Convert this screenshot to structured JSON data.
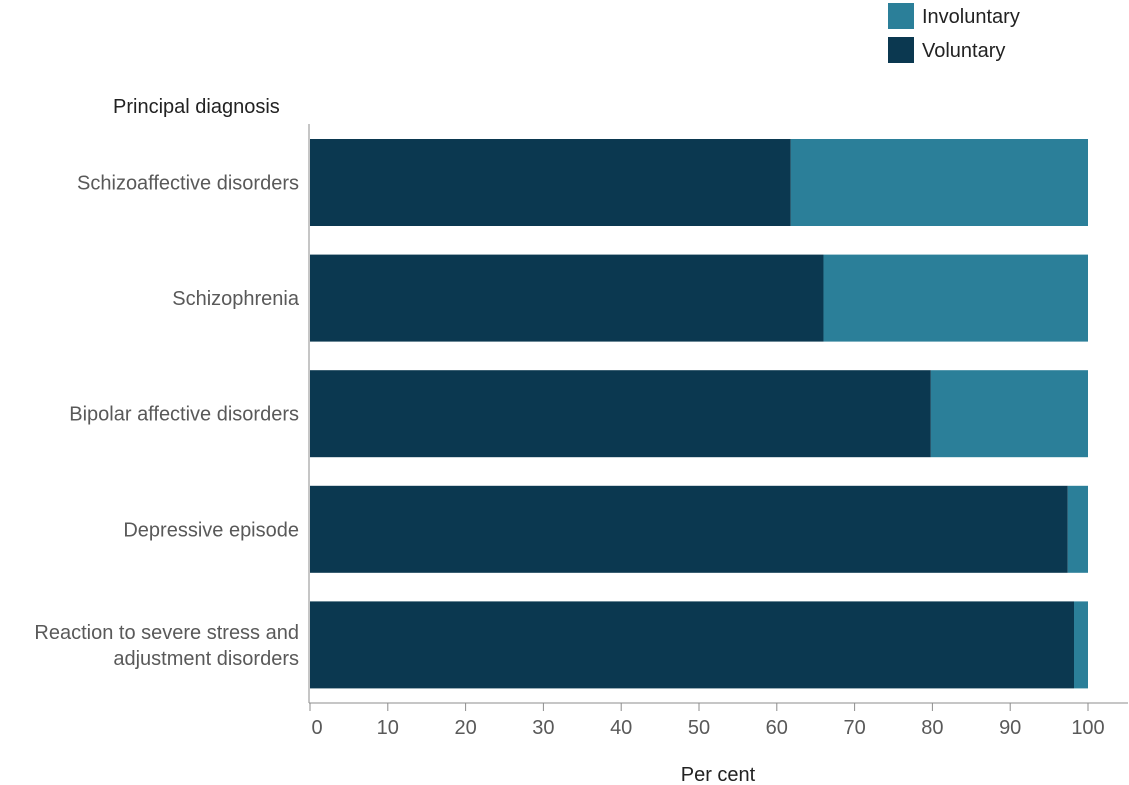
{
  "chart_data": {
    "type": "bar",
    "orientation": "horizontal",
    "stacked": true,
    "title": "",
    "xlabel": "Per cent",
    "ylabel": "Principal diagnosis",
    "xlim": [
      0,
      100
    ],
    "xticks": [
      "0",
      "10",
      "20",
      "30",
      "40",
      "50",
      "60",
      "70",
      "80",
      "90",
      "100"
    ],
    "categories": [
      [
        "Schizoaffective disorders"
      ],
      [
        "Schizophrenia"
      ],
      [
        "Bipolar affective disorders"
      ],
      [
        "Depressive episode"
      ],
      [
        "Reaction to severe stress and",
        "adjustment disorders"
      ]
    ],
    "series": [
      {
        "name": "Voluntary",
        "color": "#0b3850",
        "values": [
          61.8,
          66.0,
          79.8,
          97.4,
          98.2
        ]
      },
      {
        "name": "Involuntary",
        "color": "#2b7f99",
        "values": [
          38.2,
          34.0,
          20.2,
          2.6,
          1.8
        ]
      }
    ],
    "legend": {
      "position": "top-right",
      "entries": [
        {
          "name": "Involuntary",
          "color": "#2b7f99"
        },
        {
          "name": "Voluntary",
          "color": "#0b3850"
        }
      ]
    },
    "grid": false
  }
}
